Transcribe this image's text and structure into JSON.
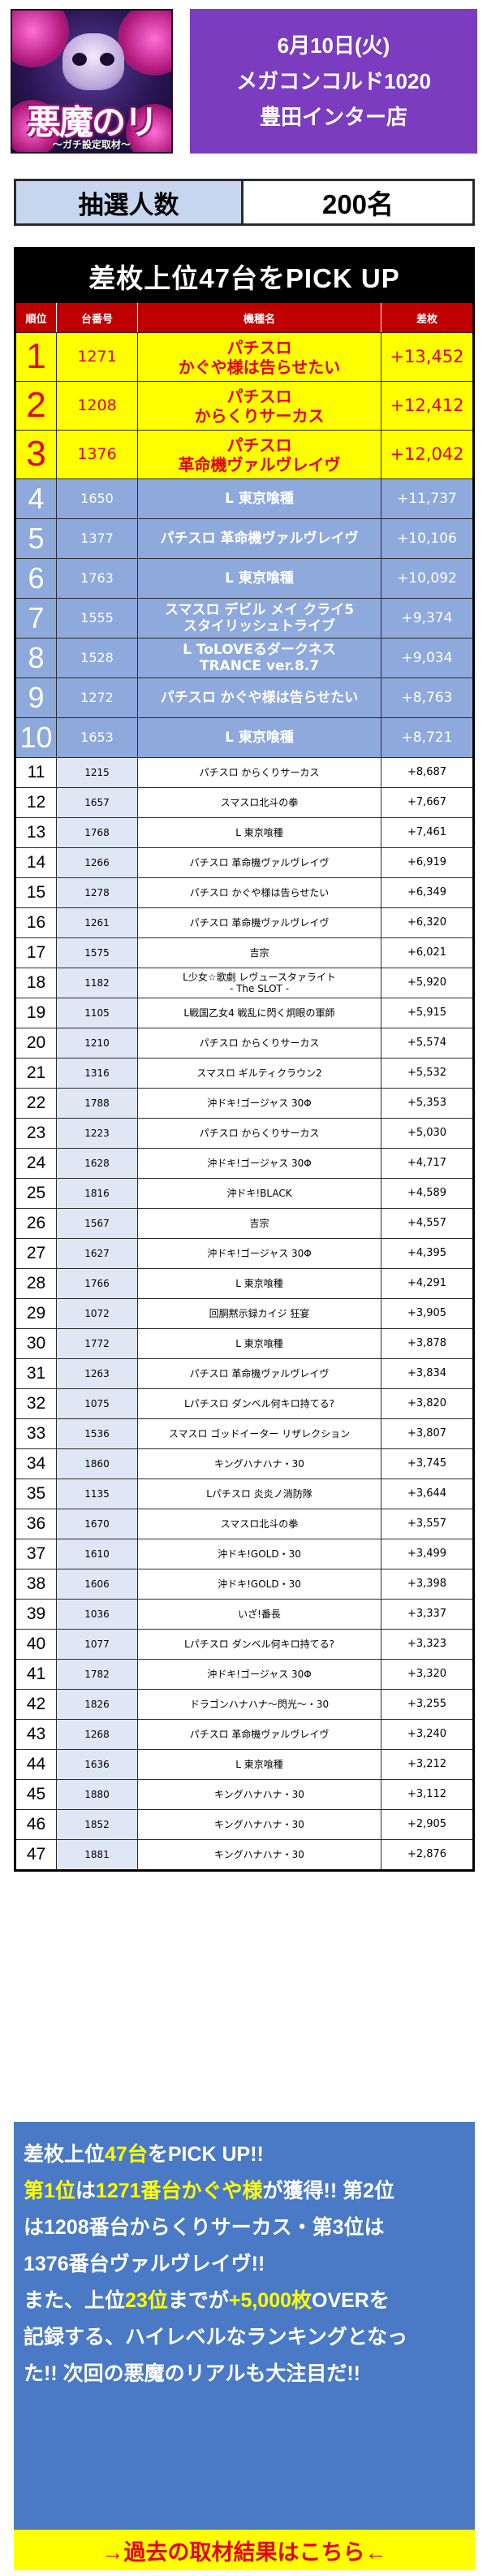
{
  "header": {
    "logo_text": "悪魔のリアル",
    "logo_sub": "〜ガチ設定取材〜",
    "date": "6月10日(火)",
    "store_name": "メガコンコルド1020",
    "store_branch": "豊田インター店"
  },
  "lottery": {
    "label": "抽選人数",
    "value": "200名"
  },
  "ranking": {
    "title": "差枚上位47台をPICK UP",
    "columns": [
      "順位",
      "台番号",
      "機種名",
      "差枚"
    ],
    "rows": [
      {
        "rank": "1",
        "no": "1271",
        "name": [
          "パチスロ",
          "かぐや様は告らせたい"
        ],
        "diff": "+13,452"
      },
      {
        "rank": "2",
        "no": "1208",
        "name": [
          "パチスロ",
          "からくりサーカス"
        ],
        "diff": "+12,412"
      },
      {
        "rank": "3",
        "no": "1376",
        "name": [
          "パチスロ",
          "革命機ヴァルヴレイヴ"
        ],
        "diff": "+12,042"
      },
      {
        "rank": "4",
        "no": "1650",
        "name": [
          "L 東京喰種"
        ],
        "diff": "+11,737"
      },
      {
        "rank": "5",
        "no": "1377",
        "name": [
          "パチスロ 革命機ヴァルヴレイヴ"
        ],
        "diff": "+10,106"
      },
      {
        "rank": "6",
        "no": "1763",
        "name": [
          "L 東京喰種"
        ],
        "diff": "+10,092"
      },
      {
        "rank": "7",
        "no": "1555",
        "name": [
          "スマスロ デビル メイ クライ5",
          "スタイリッシュトライブ"
        ],
        "diff": "+9,374"
      },
      {
        "rank": "8",
        "no": "1528",
        "name": [
          "L ToLOVEるダークネス",
          "TRANCE ver.8.7"
        ],
        "diff": "+9,034"
      },
      {
        "rank": "9",
        "no": "1272",
        "name": [
          "パチスロ かぐや様は告らせたい"
        ],
        "diff": "+8,763"
      },
      {
        "rank": "10",
        "no": "1653",
        "name": [
          "L 東京喰種"
        ],
        "diff": "+8,721"
      },
      {
        "rank": "11",
        "no": "1215",
        "name": [
          "パチスロ からくりサーカス"
        ],
        "diff": "+8,687"
      },
      {
        "rank": "12",
        "no": "1657",
        "name": [
          "スマスロ北斗の拳"
        ],
        "diff": "+7,667"
      },
      {
        "rank": "13",
        "no": "1768",
        "name": [
          "L 東京喰種"
        ],
        "diff": "+7,461"
      },
      {
        "rank": "14",
        "no": "1266",
        "name": [
          "パチスロ 革命機ヴァルヴレイヴ"
        ],
        "diff": "+6,919"
      },
      {
        "rank": "15",
        "no": "1278",
        "name": [
          "パチスロ かぐや様は告らせたい"
        ],
        "diff": "+6,349"
      },
      {
        "rank": "16",
        "no": "1261",
        "name": [
          "パチスロ 革命機ヴァルヴレイヴ"
        ],
        "diff": "+6,320"
      },
      {
        "rank": "17",
        "no": "1575",
        "name": [
          "吉宗"
        ],
        "diff": "+6,021"
      },
      {
        "rank": "18",
        "no": "1182",
        "name": [
          "L少女☆歌劇 レヴュースタァライト",
          "- The SLOT -"
        ],
        "diff": "+5,920"
      },
      {
        "rank": "19",
        "no": "1105",
        "name": [
          "L戦国乙女4 戦乱に閃く炯眼の軍師"
        ],
        "diff": "+5,915"
      },
      {
        "rank": "20",
        "no": "1210",
        "name": [
          "パチスロ からくりサーカス"
        ],
        "diff": "+5,574"
      },
      {
        "rank": "21",
        "no": "1316",
        "name": [
          "スマスロ ギルティクラウン2"
        ],
        "diff": "+5,532"
      },
      {
        "rank": "22",
        "no": "1788",
        "name": [
          "沖ドキ!ゴージャス 30Φ"
        ],
        "diff": "+5,353"
      },
      {
        "rank": "23",
        "no": "1223",
        "name": [
          "パチスロ からくりサーカス"
        ],
        "diff": "+5,030"
      },
      {
        "rank": "24",
        "no": "1628",
        "name": [
          "沖ドキ!ゴージャス 30Φ"
        ],
        "diff": "+4,717"
      },
      {
        "rank": "25",
        "no": "1816",
        "name": [
          "沖ドキ!BLACK"
        ],
        "diff": "+4,589"
      },
      {
        "rank": "26",
        "no": "1567",
        "name": [
          "吉宗"
        ],
        "diff": "+4,557"
      },
      {
        "rank": "27",
        "no": "1627",
        "name": [
          "沖ドキ!ゴージャス 30Φ"
        ],
        "diff": "+4,395"
      },
      {
        "rank": "28",
        "no": "1766",
        "name": [
          "L 東京喰種"
        ],
        "diff": "+4,291"
      },
      {
        "rank": "29",
        "no": "1072",
        "name": [
          "回胴黙示録カイジ 狂宴"
        ],
        "diff": "+3,905"
      },
      {
        "rank": "30",
        "no": "1772",
        "name": [
          "L 東京喰種"
        ],
        "diff": "+3,878"
      },
      {
        "rank": "31",
        "no": "1263",
        "name": [
          "パチスロ 革命機ヴァルヴレイヴ"
        ],
        "diff": "+3,834"
      },
      {
        "rank": "32",
        "no": "1075",
        "name": [
          "Lパチスロ ダンベル何キロ持てる?"
        ],
        "diff": "+3,820"
      },
      {
        "rank": "33",
        "no": "1536",
        "name": [
          "スマスロ ゴッドイーター リザレクション"
        ],
        "diff": "+3,807"
      },
      {
        "rank": "34",
        "no": "1860",
        "name": [
          "キングハナハナ・30"
        ],
        "diff": "+3,745"
      },
      {
        "rank": "35",
        "no": "1135",
        "name": [
          "Lパチスロ 炎炎ノ消防隊"
        ],
        "diff": "+3,644"
      },
      {
        "rank": "36",
        "no": "1670",
        "name": [
          "スマスロ北斗の拳"
        ],
        "diff": "+3,557"
      },
      {
        "rank": "37",
        "no": "1610",
        "name": [
          "沖ドキ!GOLD・30"
        ],
        "diff": "+3,499"
      },
      {
        "rank": "38",
        "no": "1606",
        "name": [
          "沖ドキ!GOLD・30"
        ],
        "diff": "+3,398"
      },
      {
        "rank": "39",
        "no": "1036",
        "name": [
          "いざ!番長"
        ],
        "diff": "+3,337"
      },
      {
        "rank": "40",
        "no": "1077",
        "name": [
          "Lパチスロ ダンベル何キロ持てる?"
        ],
        "diff": "+3,323"
      },
      {
        "rank": "41",
        "no": "1782",
        "name": [
          "沖ドキ!ゴージャス 30Φ"
        ],
        "diff": "+3,320"
      },
      {
        "rank": "42",
        "no": "1826",
        "name": [
          "ドラゴンハナハナ〜閃光〜・30"
        ],
        "diff": "+3,255"
      },
      {
        "rank": "43",
        "no": "1268",
        "name": [
          "パチスロ 革命機ヴァルヴレイヴ"
        ],
        "diff": "+3,240"
      },
      {
        "rank": "44",
        "no": "1636",
        "name": [
          "L 東京喰種"
        ],
        "diff": "+3,212"
      },
      {
        "rank": "45",
        "no": "1880",
        "name": [
          "キングハナハナ・30"
        ],
        "diff": "+3,112"
      },
      {
        "rank": "46",
        "no": "1852",
        "name": [
          "キングハナハナ・30"
        ],
        "diff": "+2,905"
      },
      {
        "rank": "47",
        "no": "1881",
        "name": [
          "キングハナハナ・30"
        ],
        "diff": "+2,876"
      }
    ]
  },
  "summary": {
    "l1_a": "差枚上位",
    "l1_b": "47台",
    "l1_c": "をPICK UP!!",
    "l2_a": "第1位",
    "l2_b": "は",
    "l2_c": "1271番台かぐや様",
    "l2_d": "が獲得!! 第2位",
    "l3": "は1208番台からくりサーカス・第3位は",
    "l4": "1376番台ヴァルヴレイヴ!!",
    "l5_a": "また、上位",
    "l5_b": "23位",
    "l5_c": "までが",
    "l5_d": "+5,000枚",
    "l5_e": "OVERを",
    "l6": "記録する、ハイレベルなランキングとなっ",
    "l7": "た!! 次回の悪魔のリアルも大注目だ!!"
  },
  "past_link": {
    "label": "→過去の取材結果はこちら←"
  },
  "colors": {
    "header_purple": "#7b3cc0",
    "table_header_red": "#c00000",
    "top3_yellow": "#ffff00",
    "rank_red": "#e60012",
    "mid_blue": "#8ea9db",
    "summary_blue": "#4a79c6"
  }
}
